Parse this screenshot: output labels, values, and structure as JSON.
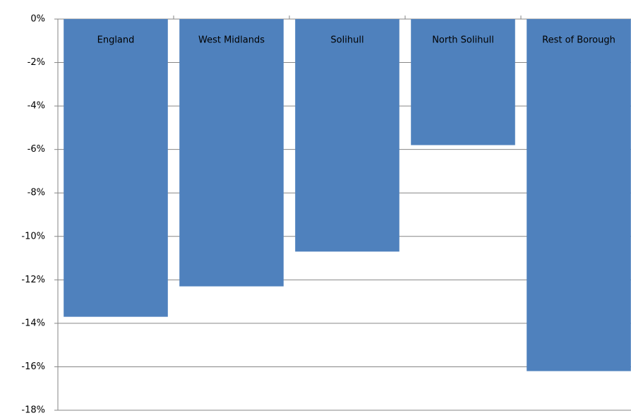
{
  "chart_data": {
    "type": "bar",
    "categories": [
      "England",
      "West Midlands",
      "Solihull",
      "North Solihull",
      "Rest of Borough"
    ],
    "values": [
      -13.7,
      -12.3,
      -10.7,
      -5.8,
      -16.2
    ],
    "color": "#4f81bd",
    "ylim": [
      -18,
      0
    ],
    "yticks": [
      {
        "value": 0,
        "label": "0%"
      },
      {
        "value": -2,
        "label": "-2%"
      },
      {
        "value": -4,
        "label": "-4%"
      },
      {
        "value": -6,
        "label": "-6%"
      },
      {
        "value": -8,
        "label": "-8%"
      },
      {
        "value": -10,
        "label": "-10%"
      },
      {
        "value": -12,
        "label": "-12%"
      },
      {
        "value": -14,
        "label": "-14%"
      },
      {
        "value": -16,
        "label": "-16%"
      },
      {
        "value": -18,
        "label": "-18%"
      }
    ],
    "grid": true
  }
}
